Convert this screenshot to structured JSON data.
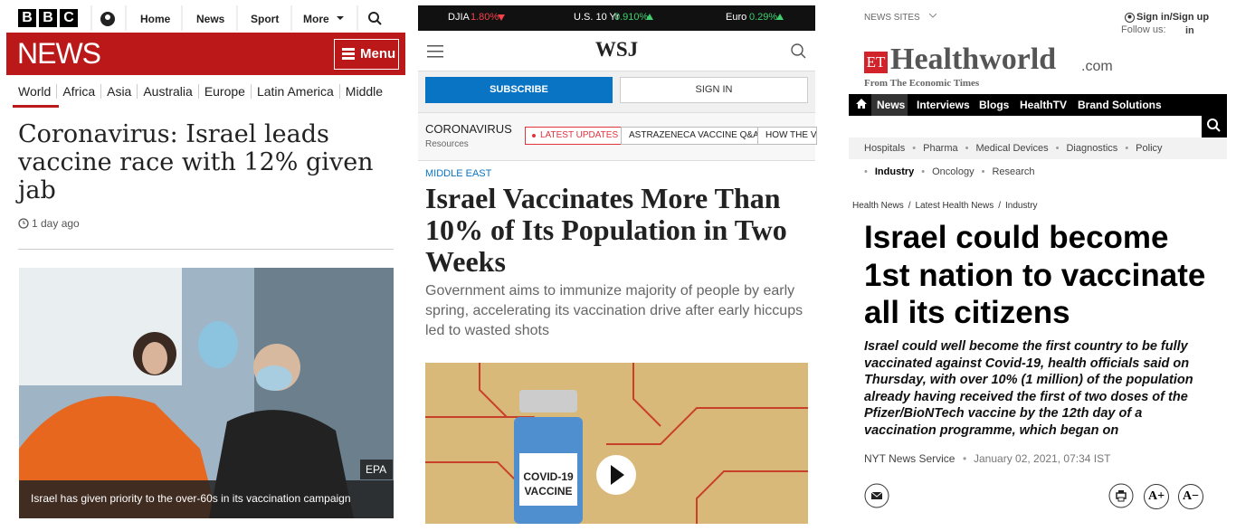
{
  "bbc": {
    "logo": [
      "B",
      "B",
      "C"
    ],
    "nav": [
      "Home",
      "News",
      "Sport",
      "More"
    ],
    "brand": "NEWS",
    "menu": "Menu",
    "sections": [
      "World",
      "Africa",
      "Asia",
      "Australia",
      "Europe",
      "Latin America",
      "Middle"
    ],
    "headline": "Coronavirus: Israel leads vaccine race with 12% given jab",
    "timestamp": "1 day ago",
    "image_credit": "EPA",
    "caption": "Israel has given priority to the over-60s in its vaccination campaign"
  },
  "wsj": {
    "ticker": [
      {
        "name": "DJIA",
        "change": "1.80%"
      },
      {
        "name": "U.S. 10 Yr",
        "change": "0.910%"
      },
      {
        "name": "Euro",
        "change": "0.29%"
      }
    ],
    "logo": "WSJ",
    "subscribe": "SUBSCRIBE",
    "sign_in": "SIGN IN",
    "topic": "CORONAVIRUS",
    "topic_sub": "Resources",
    "tabs": [
      "LATEST UPDATES",
      "ASTRAZENECA VACCINE Q&A",
      "HOW THE VA"
    ],
    "kicker": "MIDDLE EAST",
    "headline": "Israel Vaccinates More Than 10% of Its Population in Two Weeks",
    "dek": "Government aims to immunize majority of people by early spring, accelerating its vaccination drive after early hiccups led to wasted shots",
    "video_label": "COVID-19 VACCINE"
  },
  "et": {
    "news_sites": "NEWS SITES",
    "sign_in": "Sign in/Sign up",
    "follow": "Follow us:",
    "logo_et": "ET",
    "logo_name": "Healthworld",
    "logo_domain": ".com",
    "logo_tagline": "From The Economic Times",
    "nav": [
      "News",
      "Interviews",
      "Blogs",
      "HealthTV",
      "Brand Solutions"
    ],
    "subnav": [
      "Hospitals",
      "Pharma",
      "Medical Devices",
      "Diagnostics",
      "Policy"
    ],
    "subnav2": [
      "Industry",
      "Oncology",
      "Research"
    ],
    "breadcrumb": [
      "Health News",
      "Latest Health News",
      "Industry"
    ],
    "headline": "Israel could become 1st nation to vaccinate all its citizens",
    "summary": "Israel could well become the first country to be fully vaccinated against Covid-19, health officials said on Thursday, with over 10% (1 million) of the population already having received the first of two doses of the Pfizer/BioNTech vaccine by the 12th day of a vaccination programme, which began on",
    "source": "NYT News Service",
    "date": "January 02, 2021, 07:34 IST",
    "font_up": "A+",
    "font_down": "A−"
  }
}
